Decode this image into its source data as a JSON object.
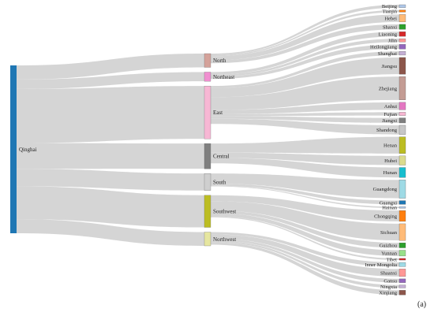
{
  "chart_data": {
    "type": "sankey",
    "panel_label": "(a)",
    "source": {
      "name": "Qinghai",
      "color": "#1f77b4"
    },
    "regions": [
      {
        "name": "North",
        "color": "#d4a29a",
        "value": 3
      },
      {
        "name": "Northeast",
        "color": "#f08fd0",
        "value": 2
      },
      {
        "name": "East",
        "color": "#f7b7d4",
        "value": 11.5
      },
      {
        "name": "Central",
        "color": "#7f7f7f",
        "value": 5.5
      },
      {
        "name": "South",
        "color": "#cfcfcf",
        "value": 3.7
      },
      {
        "name": "Southwest",
        "color": "#bcbd22",
        "value": 7
      },
      {
        "name": "Northwest",
        "color": "#e6e6a0",
        "value": 3
      }
    ],
    "provinces": [
      {
        "name": "Beijing",
        "region": "North",
        "value": 0.35,
        "color": "#aec7e8"
      },
      {
        "name": "Tianjin",
        "region": "North",
        "value": 0.25,
        "color": "#ff7f0e"
      },
      {
        "name": "Hebei",
        "region": "North",
        "value": 0.9,
        "color": "#ffbb78"
      },
      {
        "name": "Shanxi",
        "region": "North",
        "value": 0.6,
        "color": "#2ca02c"
      },
      {
        "name": "Liaoning",
        "region": "Northeast",
        "value": 0.55,
        "color": "#d62728"
      },
      {
        "name": "Jilin",
        "region": "Northeast",
        "value": 0.4,
        "color": "#ff9896"
      },
      {
        "name": "Heilongjiang",
        "region": "Northeast",
        "value": 0.55,
        "color": "#9467bd"
      },
      {
        "name": "Shanghai",
        "region": "East",
        "value": 0.45,
        "color": "#c5b0d5"
      },
      {
        "name": "Jiangsu",
        "region": "East",
        "value": 2.0,
        "color": "#8c564b"
      },
      {
        "name": "Zhejiang",
        "region": "East",
        "value": 2.8,
        "color": "#c49c94"
      },
      {
        "name": "Anhui",
        "region": "East",
        "value": 0.9,
        "color": "#e377c2"
      },
      {
        "name": "Fujian",
        "region": "East",
        "value": 0.4,
        "color": "#f7b6d2"
      },
      {
        "name": "Jiangxi",
        "region": "East",
        "value": 0.6,
        "color": "#7f7f7f"
      },
      {
        "name": "Shandong",
        "region": "East",
        "value": 1.1,
        "color": "#c7c7c7"
      },
      {
        "name": "Henan",
        "region": "Central",
        "value": 2.0,
        "color": "#bcbd22"
      },
      {
        "name": "Hubei",
        "region": "Central",
        "value": 1.1,
        "color": "#dbdb8d"
      },
      {
        "name": "Hunan",
        "region": "Central",
        "value": 1.2,
        "color": "#17becf"
      },
      {
        "name": "Guangdong",
        "region": "South",
        "value": 2.2,
        "color": "#9edae5"
      },
      {
        "name": "Guangxi",
        "region": "South",
        "value": 0.45,
        "color": "#1f77b4"
      },
      {
        "name": "Hainan",
        "region": "South",
        "value": 0.15,
        "color": "#aec7e8"
      },
      {
        "name": "Chongqing",
        "region": "Southwest",
        "value": 1.3,
        "color": "#ff7f0e"
      },
      {
        "name": "Sichuan",
        "region": "Southwest",
        "value": 2.0,
        "color": "#ffbb78"
      },
      {
        "name": "Guizhou",
        "region": "Southwest",
        "value": 0.6,
        "color": "#2ca02c"
      },
      {
        "name": "Yunnan",
        "region": "Southwest",
        "value": 0.7,
        "color": "#98df8a"
      },
      {
        "name": "Tibet",
        "region": "Southwest",
        "value": 0.2,
        "color": "#d62728"
      },
      {
        "name": "Inner Mongolia",
        "region": "Northwest",
        "value": 0.5,
        "color": "#9edae5"
      },
      {
        "name": "Shaanxi",
        "region": "Northwest",
        "value": 0.9,
        "color": "#ff9896"
      },
      {
        "name": "Gansu",
        "region": "Northwest",
        "value": 0.45,
        "color": "#9467bd"
      },
      {
        "name": "Ningxia",
        "region": "Northwest",
        "value": 0.35,
        "color": "#c5b0d5"
      },
      {
        "name": "Xinjiang",
        "region": "Northwest",
        "value": 0.55,
        "color": "#8c564b"
      }
    ],
    "link_color": "#d3d3d3"
  }
}
